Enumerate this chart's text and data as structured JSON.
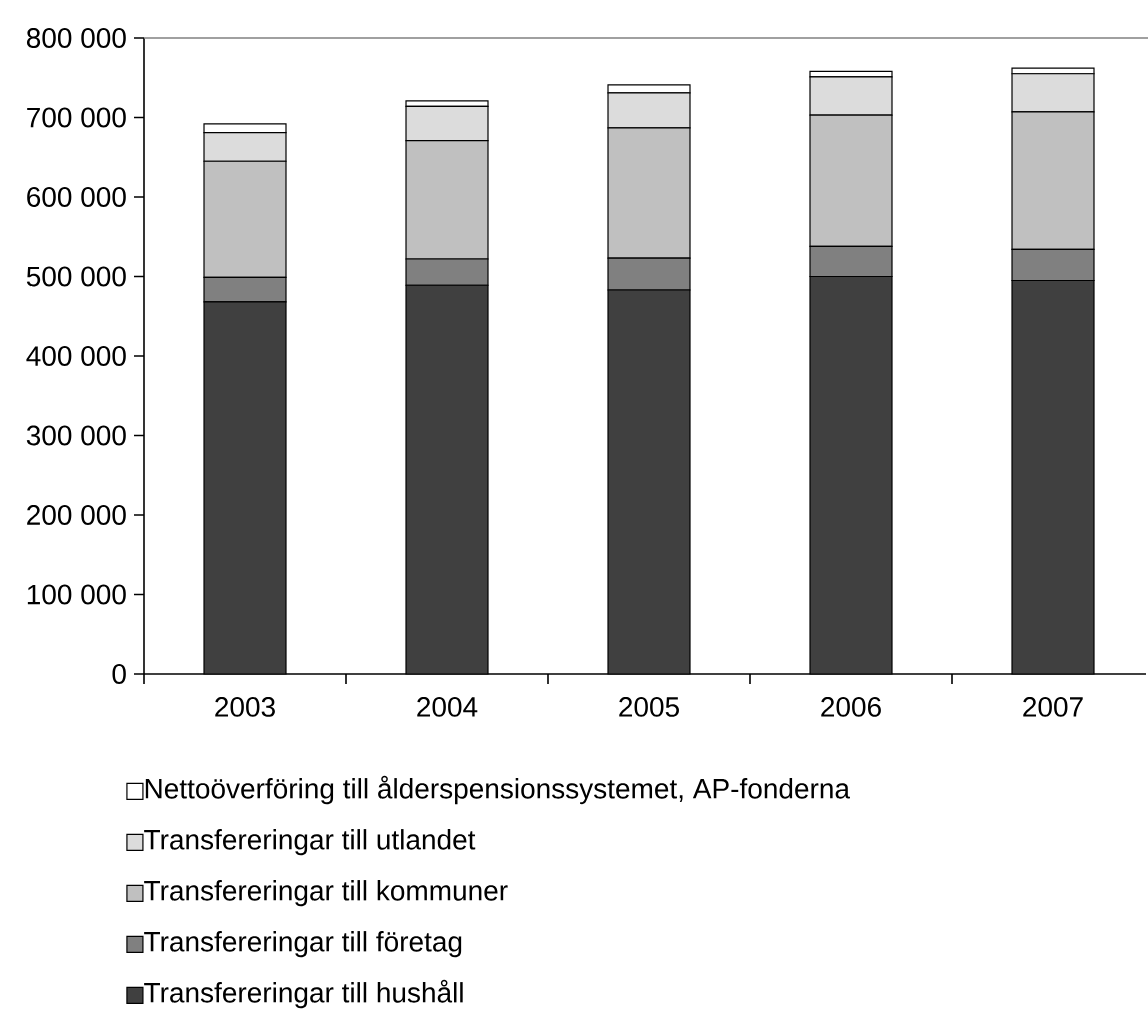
{
  "chart_data": {
    "type": "bar",
    "stacked": true,
    "categories": [
      "2003",
      "2004",
      "2005",
      "2006",
      "2007"
    ],
    "series": [
      {
        "name": "Transfereringar till hushåll",
        "color": "#404040",
        "values": [
          468000,
          489000,
          483000,
          500000,
          495000
        ]
      },
      {
        "name": "Transfereringar till företag",
        "color": "#808080",
        "values": [
          31000,
          33000,
          40000,
          38000,
          39000
        ]
      },
      {
        "name": "Transfereringar till kommuner",
        "color": "#c0c0c0",
        "values": [
          146000,
          149000,
          164000,
          165000,
          173000
        ]
      },
      {
        "name": "Transfereringar till utlandet",
        "color": "#dcdcdc",
        "values": [
          36000,
          43000,
          44000,
          48000,
          48000
        ]
      },
      {
        "name": "Nettoöverföring till ålderspensionssystemet, AP-fonderna",
        "color": "#ffffff",
        "values": [
          11000,
          7000,
          10000,
          7000,
          7000
        ]
      }
    ],
    "ylim": [
      0,
      800000
    ],
    "yticks": [
      {
        "value": 0,
        "label": "0"
      },
      {
        "value": 100000,
        "label": "100 000"
      },
      {
        "value": 200000,
        "label": "200 000"
      },
      {
        "value": 300000,
        "label": "300 000"
      },
      {
        "value": 400000,
        "label": "400 000"
      },
      {
        "value": 500000,
        "label": "500 000"
      },
      {
        "value": 600000,
        "label": "600 000"
      },
      {
        "value": 700000,
        "label": "700 000"
      },
      {
        "value": 800000,
        "label": "800 000"
      }
    ],
    "legend": "bottom"
  }
}
